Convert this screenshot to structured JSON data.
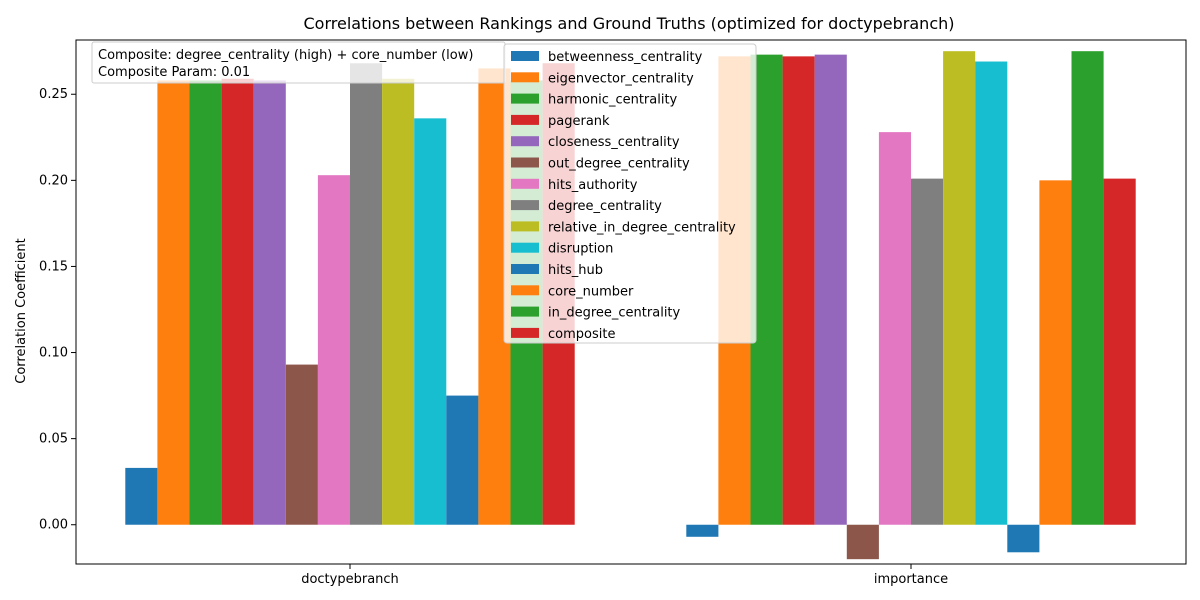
{
  "chart_data": {
    "type": "bar",
    "title": "Correlations between Rankings and Ground Truths (optimized for doctypebranch)",
    "xlabel": "",
    "ylabel": "Correlation Coefficient",
    "categories": [
      "doctypebranch",
      "importance"
    ],
    "ylim": [
      -0.0228,
      0.2815
    ],
    "yticks": [
      0.0,
      0.05,
      0.1,
      0.15,
      0.2,
      0.25
    ],
    "ytick_labels": [
      "0.00",
      "0.05",
      "0.10",
      "0.15",
      "0.20",
      "0.25"
    ],
    "grid": false,
    "legend_position": "top-center",
    "annotation": [
      "Composite: degree_centrality (high) + core_number (low)",
      "Composite Param: 0.01"
    ],
    "series": [
      {
        "name": "betweenness_centrality",
        "color": "#1f77b4",
        "values": [
          0.033,
          -0.007
        ]
      },
      {
        "name": "eigenvector_centrality",
        "color": "#ff7f0e",
        "values": [
          0.258,
          0.272
        ]
      },
      {
        "name": "harmonic_centrality",
        "color": "#2ca02c",
        "values": [
          0.258,
          0.273
        ]
      },
      {
        "name": "pagerank",
        "color": "#d62728",
        "values": [
          0.259,
          0.272
        ]
      },
      {
        "name": "closeness_centrality",
        "color": "#9467bd",
        "values": [
          0.258,
          0.273
        ]
      },
      {
        "name": "out_degree_centrality",
        "color": "#8c564b",
        "values": [
          0.093,
          -0.02
        ]
      },
      {
        "name": "hits_authority",
        "color": "#e377c2",
        "values": [
          0.203,
          0.228
        ]
      },
      {
        "name": "degree_centrality",
        "color": "#7f7f7f",
        "values": [
          0.268,
          0.201
        ]
      },
      {
        "name": "relative_in_degree_centrality",
        "color": "#bcbd22",
        "values": [
          0.259,
          0.275
        ]
      },
      {
        "name": "disruption",
        "color": "#17becf",
        "values": [
          0.236,
          0.269
        ]
      },
      {
        "name": "hits_hub",
        "color": "#1f77b4",
        "values": [
          0.075,
          -0.016
        ]
      },
      {
        "name": "core_number",
        "color": "#ff7f0e",
        "values": [
          0.265,
          0.2
        ]
      },
      {
        "name": "in_degree_centrality",
        "color": "#2ca02c",
        "values": [
          0.258,
          0.275
        ]
      },
      {
        "name": "composite",
        "color": "#d62728",
        "values": [
          0.268,
          0.201
        ]
      }
    ]
  }
}
